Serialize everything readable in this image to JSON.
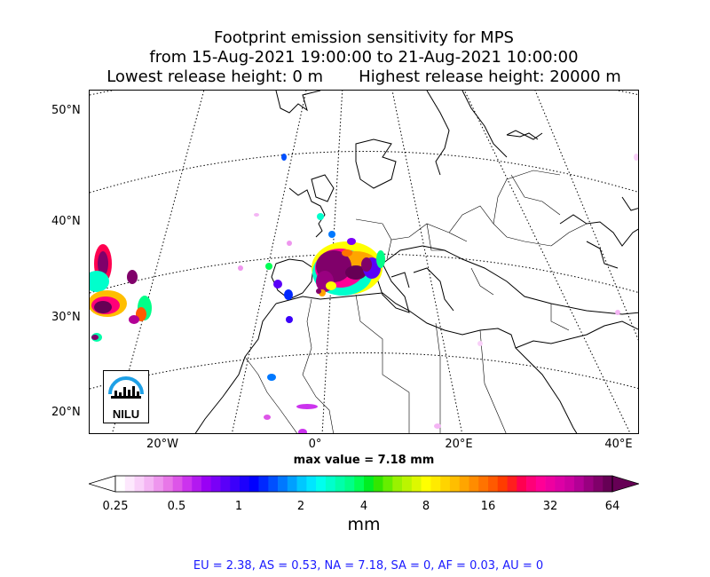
{
  "title": {
    "line1": "Footprint emission sensitivity for MPS",
    "line2": "from 15-Aug-2021 19:00:00 to 21-Aug-2021 10:00:00",
    "lowest": "Lowest release height: 0 m",
    "highest": "Highest release height: 20000 m"
  },
  "map": {
    "lat_labels": [
      "50°N",
      "40°N",
      "30°N",
      "20°N"
    ],
    "lon_labels": [
      "20°W",
      "0°",
      "20°E",
      "40°E"
    ],
    "logo_text": "NILU"
  },
  "max_value": "max value = 7.18 mm",
  "colorbar": {
    "ticks": [
      "0.25",
      "0.5",
      "1",
      "2",
      "4",
      "8",
      "16",
      "32",
      "64"
    ],
    "unit": "mm",
    "colors": [
      "#ffffff",
      "#fde8fd",
      "#f9d0f9",
      "#f4b5f4",
      "#ee96ee",
      "#e877e8",
      "#dd55e8",
      "#cc33ee",
      "#b319f0",
      "#9900f5",
      "#7a00f7",
      "#5a00f8",
      "#3b00fa",
      "#1d00fc",
      "#0000ff",
      "#0028ff",
      "#0050ff",
      "#0078ff",
      "#00a0ff",
      "#00c8ff",
      "#00e6ff",
      "#00ffee",
      "#00ffcc",
      "#00ffaa",
      "#00ff88",
      "#00ff55",
      "#00ee22",
      "#33e600",
      "#66ee00",
      "#99f200",
      "#bbf500",
      "#ddf800",
      "#ffff00",
      "#ffea00",
      "#ffd400",
      "#ffbe00",
      "#ffa500",
      "#ff8c00",
      "#ff7300",
      "#ff5a00",
      "#ff3c00",
      "#ff1e1e",
      "#ff0050",
      "#ff0078",
      "#ff0096",
      "#ee00a0",
      "#dd00a5",
      "#cc00a0",
      "#b30096",
      "#990080",
      "#80006a",
      "#660055"
    ]
  },
  "footer": "EU = 2.38,  AS = 0.53,  NA = 7.18,  SA = 0,  AF = 0.03,  AU = 0"
}
